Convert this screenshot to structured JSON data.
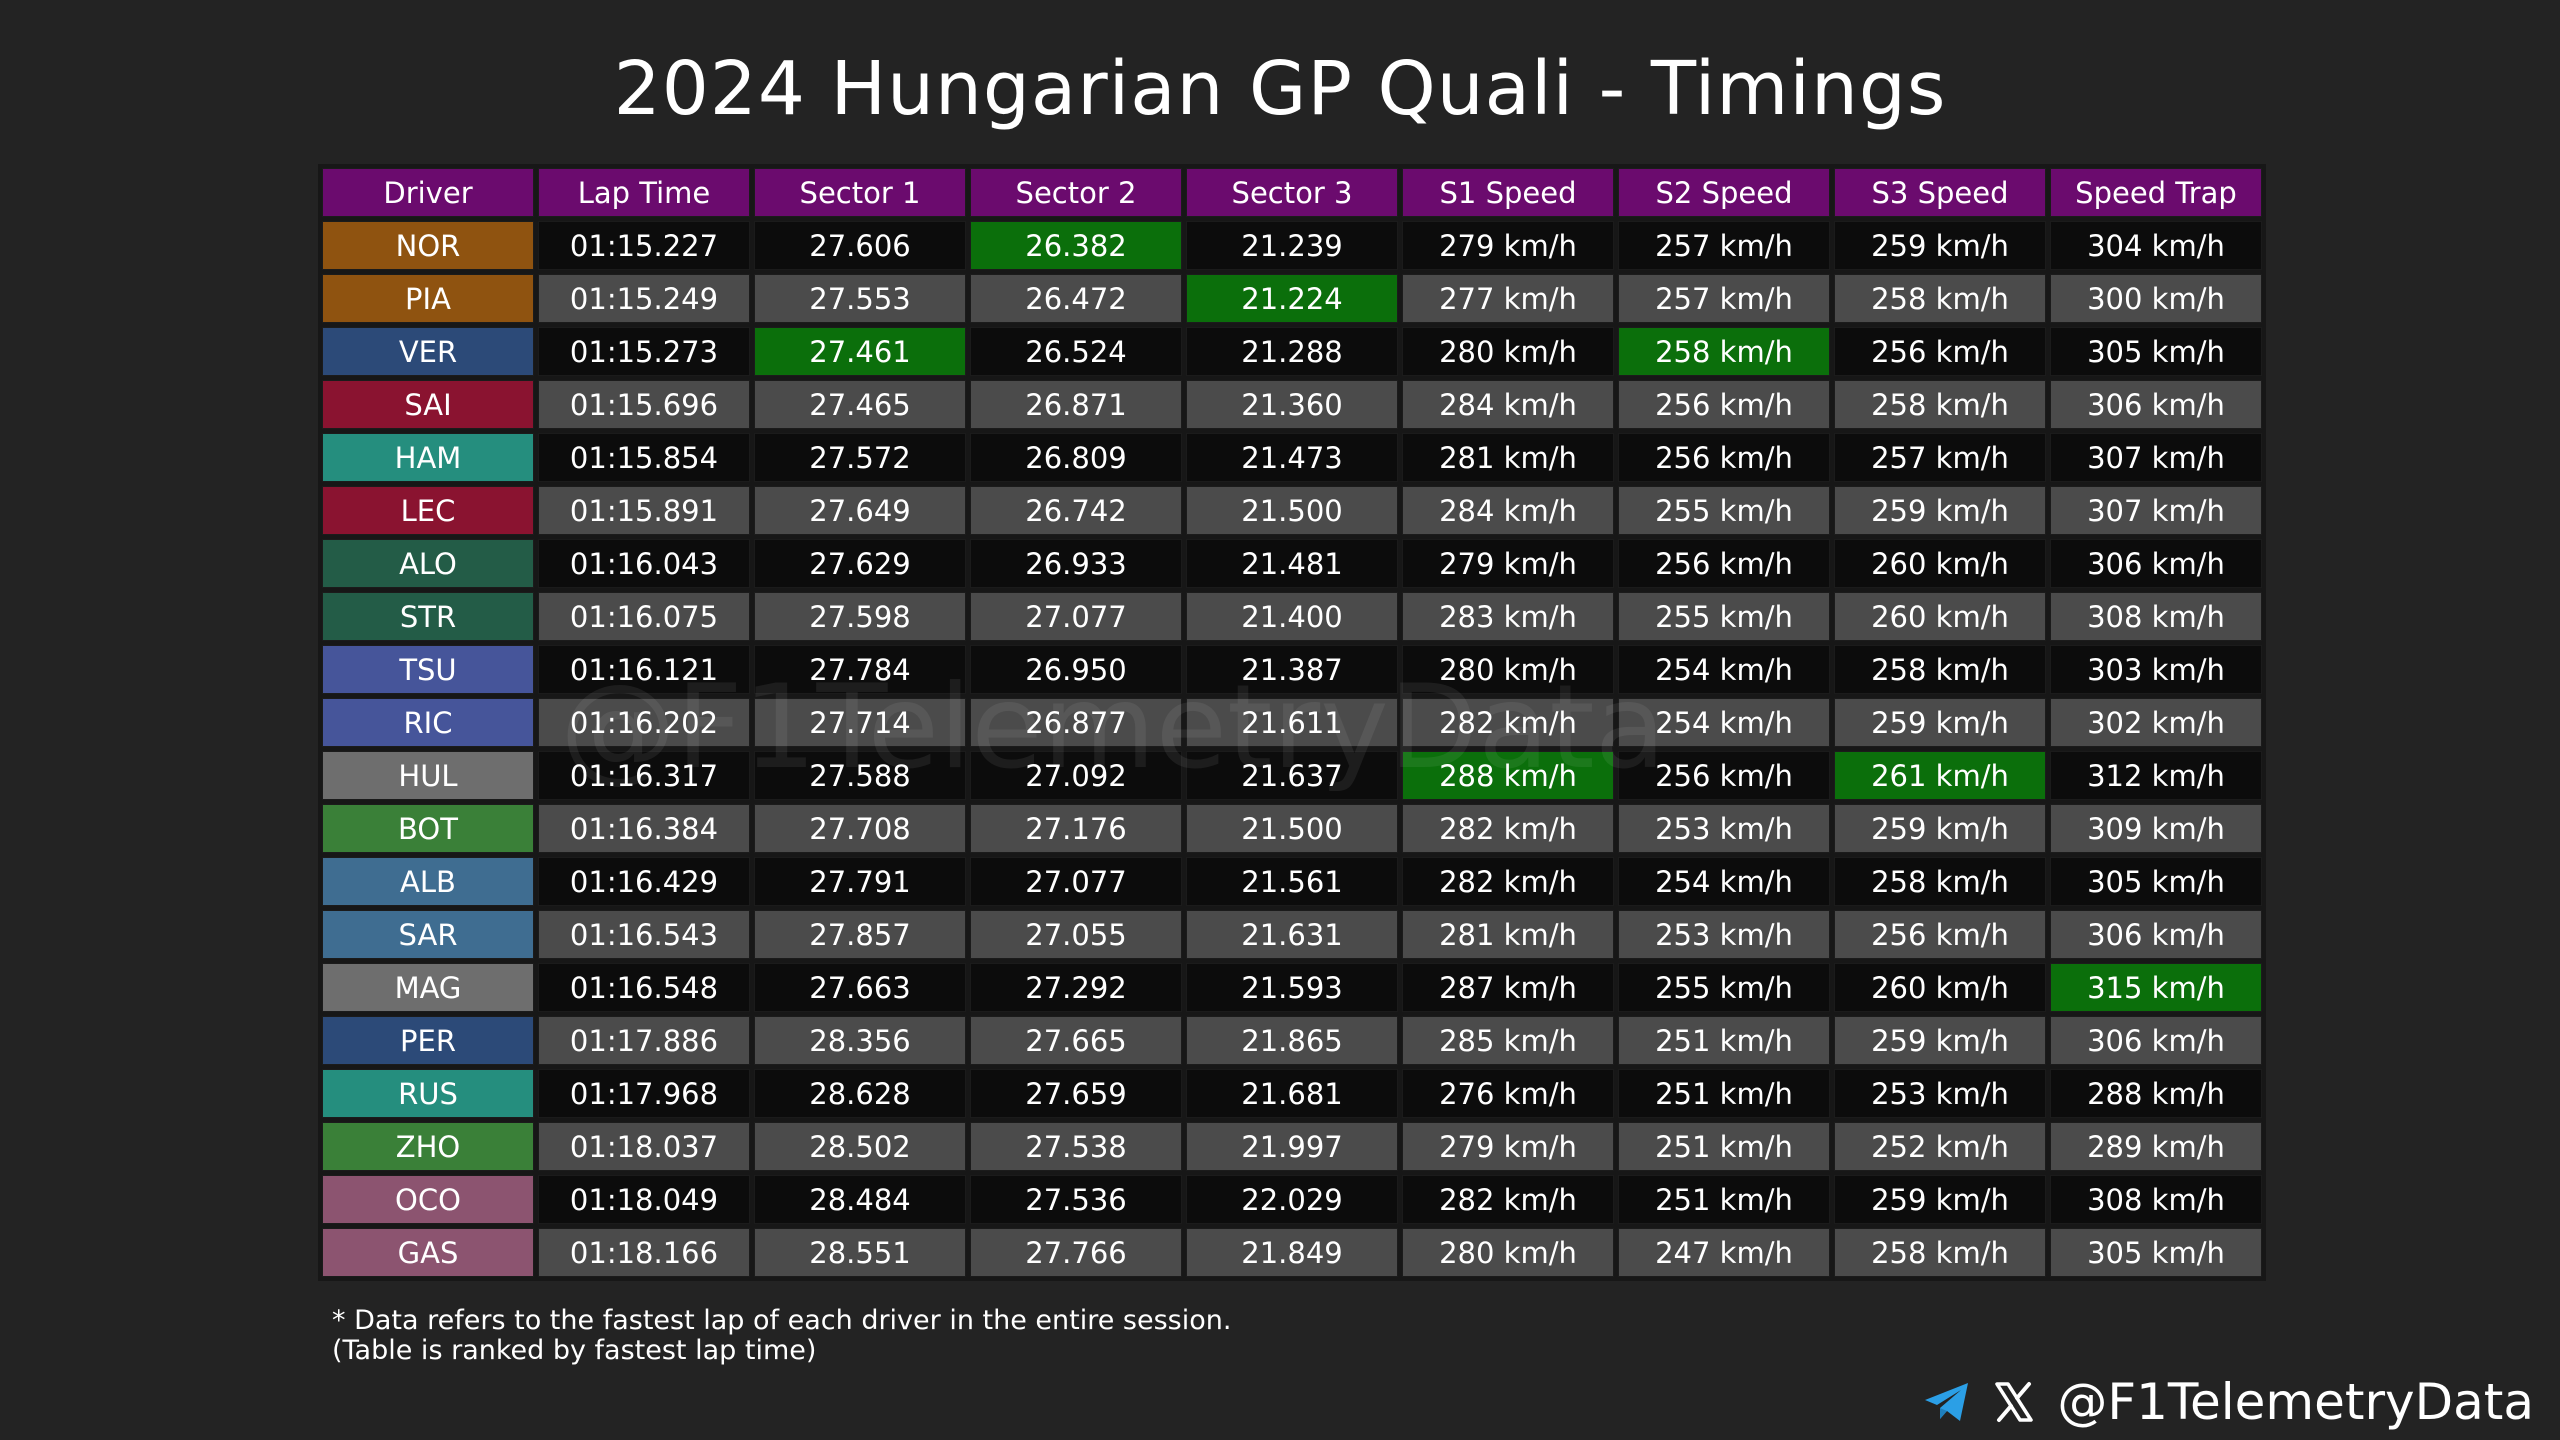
{
  "title": "2024 Hungarian GP Quali - Timings",
  "watermark": "@F1TelemetryData",
  "colors": {
    "header": "#6b0b6e",
    "fastest": "#0b6f0b",
    "row_dark": "#0c0c0c",
    "row_light": "#4b4b4b",
    "teams": {
      "mclaren": "#8f5310",
      "red_bull": "#2c4a78",
      "ferrari": "#8a1330",
      "mercedes": "#258e7e",
      "aston_martin": "#235c47",
      "rb": "#46559a",
      "haas": "#6e6e6e",
      "sauber": "#3a8038",
      "williams": "#3f6d91",
      "alpine": "#8c5470"
    }
  },
  "chart_data": {
    "type": "table",
    "columns": [
      "Driver",
      "Lap Time",
      "Sector 1",
      "Sector 2",
      "Sector 3",
      "S1 Speed",
      "S2 Speed",
      "S3 Speed",
      "Speed Trap"
    ],
    "rows": [
      {
        "driver": "NOR",
        "team": "mclaren",
        "cells": [
          "01:15.227",
          "27.606",
          "26.382",
          "21.239",
          "279 km/h",
          "257 km/h",
          "259 km/h",
          "304 km/h"
        ],
        "fastest": [
          2
        ]
      },
      {
        "driver": "PIA",
        "team": "mclaren",
        "cells": [
          "01:15.249",
          "27.553",
          "26.472",
          "21.224",
          "277 km/h",
          "257 km/h",
          "258 km/h",
          "300 km/h"
        ],
        "fastest": [
          3
        ]
      },
      {
        "driver": "VER",
        "team": "red_bull",
        "cells": [
          "01:15.273",
          "27.461",
          "26.524",
          "21.288",
          "280 km/h",
          "258 km/h",
          "256 km/h",
          "305 km/h"
        ],
        "fastest": [
          1,
          5
        ]
      },
      {
        "driver": "SAI",
        "team": "ferrari",
        "cells": [
          "01:15.696",
          "27.465",
          "26.871",
          "21.360",
          "284 km/h",
          "256 km/h",
          "258 km/h",
          "306 km/h"
        ],
        "fastest": []
      },
      {
        "driver": "HAM",
        "team": "mercedes",
        "cells": [
          "01:15.854",
          "27.572",
          "26.809",
          "21.473",
          "281 km/h",
          "256 km/h",
          "257 km/h",
          "307 km/h"
        ],
        "fastest": []
      },
      {
        "driver": "LEC",
        "team": "ferrari",
        "cells": [
          "01:15.891",
          "27.649",
          "26.742",
          "21.500",
          "284 km/h",
          "255 km/h",
          "259 km/h",
          "307 km/h"
        ],
        "fastest": []
      },
      {
        "driver": "ALO",
        "team": "aston_martin",
        "cells": [
          "01:16.043",
          "27.629",
          "26.933",
          "21.481",
          "279 km/h",
          "256 km/h",
          "260 km/h",
          "306 km/h"
        ],
        "fastest": []
      },
      {
        "driver": "STR",
        "team": "aston_martin",
        "cells": [
          "01:16.075",
          "27.598",
          "27.077",
          "21.400",
          "283 km/h",
          "255 km/h",
          "260 km/h",
          "308 km/h"
        ],
        "fastest": []
      },
      {
        "driver": "TSU",
        "team": "rb",
        "cells": [
          "01:16.121",
          "27.784",
          "26.950",
          "21.387",
          "280 km/h",
          "254 km/h",
          "258 km/h",
          "303 km/h"
        ],
        "fastest": []
      },
      {
        "driver": "RIC",
        "team": "rb",
        "cells": [
          "01:16.202",
          "27.714",
          "26.877",
          "21.611",
          "282 km/h",
          "254 km/h",
          "259 km/h",
          "302 km/h"
        ],
        "fastest": []
      },
      {
        "driver": "HUL",
        "team": "haas",
        "cells": [
          "01:16.317",
          "27.588",
          "27.092",
          "21.637",
          "288 km/h",
          "256 km/h",
          "261 km/h",
          "312 km/h"
        ],
        "fastest": [
          4,
          6
        ]
      },
      {
        "driver": "BOT",
        "team": "sauber",
        "cells": [
          "01:16.384",
          "27.708",
          "27.176",
          "21.500",
          "282 km/h",
          "253 km/h",
          "259 km/h",
          "309 km/h"
        ],
        "fastest": []
      },
      {
        "driver": "ALB",
        "team": "williams",
        "cells": [
          "01:16.429",
          "27.791",
          "27.077",
          "21.561",
          "282 km/h",
          "254 km/h",
          "258 km/h",
          "305 km/h"
        ],
        "fastest": []
      },
      {
        "driver": "SAR",
        "team": "williams",
        "cells": [
          "01:16.543",
          "27.857",
          "27.055",
          "21.631",
          "281 km/h",
          "253 km/h",
          "256 km/h",
          "306 km/h"
        ],
        "fastest": []
      },
      {
        "driver": "MAG",
        "team": "haas",
        "cells": [
          "01:16.548",
          "27.663",
          "27.292",
          "21.593",
          "287 km/h",
          "255 km/h",
          "260 km/h",
          "315 km/h"
        ],
        "fastest": [
          7
        ]
      },
      {
        "driver": "PER",
        "team": "red_bull",
        "cells": [
          "01:17.886",
          "28.356",
          "27.665",
          "21.865",
          "285 km/h",
          "251 km/h",
          "259 km/h",
          "306 km/h"
        ],
        "fastest": []
      },
      {
        "driver": "RUS",
        "team": "mercedes",
        "cells": [
          "01:17.968",
          "28.628",
          "27.659",
          "21.681",
          "276 km/h",
          "251 km/h",
          "253 km/h",
          "288 km/h"
        ],
        "fastest": []
      },
      {
        "driver": "ZHO",
        "team": "sauber",
        "cells": [
          "01:18.037",
          "28.502",
          "27.538",
          "21.997",
          "279 km/h",
          "251 km/h",
          "252 km/h",
          "289 km/h"
        ],
        "fastest": []
      },
      {
        "driver": "OCO",
        "team": "alpine",
        "cells": [
          "01:18.049",
          "28.484",
          "27.536",
          "22.029",
          "282 km/h",
          "251 km/h",
          "259 km/h",
          "308 km/h"
        ],
        "fastest": []
      },
      {
        "driver": "GAS",
        "team": "alpine",
        "cells": [
          "01:18.166",
          "28.551",
          "27.766",
          "21.849",
          "280 km/h",
          "247 km/h",
          "258 km/h",
          "305 km/h"
        ],
        "fastest": []
      }
    ]
  },
  "footnote": {
    "line1": "* Data refers to the fastest lap of each driver in the entire session.",
    "line2": "(Table is ranked by fastest lap time)"
  },
  "credit": {
    "handle": "@F1TelemetryData",
    "icons": [
      "telegram-icon",
      "x-logo-icon"
    ]
  }
}
